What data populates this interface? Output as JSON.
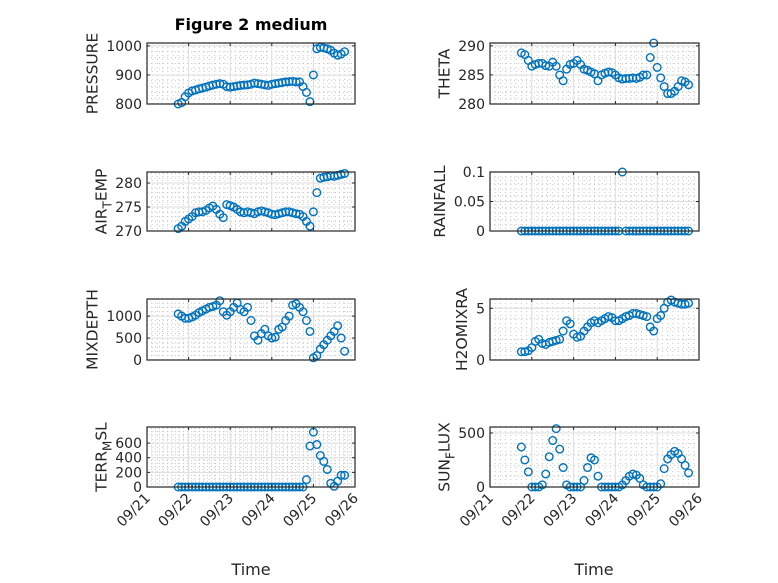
{
  "chart_data": {
    "type": "scatter",
    "figure_title": "Figure 2 medium",
    "xlabel": "Time",
    "x_unit": "day of September",
    "xlim": [
      21,
      26
    ],
    "xticks": [
      21,
      22,
      23,
      24,
      25,
      26
    ],
    "xtick_labels": [
      "09/21",
      "09/22",
      "09/23",
      "09/24",
      "09/25",
      "09/26"
    ],
    "x": [
      21.75,
      21.833,
      21.917,
      22.0,
      22.083,
      22.167,
      22.25,
      22.333,
      22.417,
      22.5,
      22.583,
      22.667,
      22.75,
      22.833,
      22.917,
      23.0,
      23.083,
      23.167,
      23.25,
      23.333,
      23.417,
      23.5,
      23.583,
      23.667,
      23.75,
      23.833,
      23.917,
      24.0,
      24.083,
      24.167,
      24.25,
      24.333,
      24.417,
      24.5,
      24.583,
      24.667,
      24.75,
      24.833,
      24.917,
      25.0,
      25.083,
      25.167,
      25.25,
      25.333,
      25.417,
      25.5,
      25.583,
      25.667,
      25.75
    ],
    "marker_color": "#0072BD",
    "grid": "major and minor",
    "subplots": [
      {
        "name": "pressure",
        "ylabel": "PRESSURE",
        "ylim": [
          800,
          1010
        ],
        "yticks": [
          800,
          900,
          1000
        ],
        "ytick_labels": [
          "800",
          "900",
          "1000"
        ],
        "show_xticklabels": false,
        "values": [
          800,
          805,
          825,
          838,
          845,
          848,
          852,
          855,
          858,
          862,
          865,
          868,
          870,
          868,
          860,
          858,
          860,
          862,
          864,
          865,
          866,
          868,
          872,
          870,
          868,
          866,
          864,
          868,
          870,
          872,
          874,
          876,
          877,
          878,
          876,
          876,
          860,
          840,
          808,
          900,
          990,
          995,
          993,
          990,
          985,
          975,
          968,
          972,
          980
        ]
      },
      {
        "name": "theta",
        "ylabel": "THETA",
        "ylim": [
          280,
          290.5
        ],
        "yticks": [
          280,
          285,
          290
        ],
        "ytick_labels": [
          "280",
          "285",
          "290"
        ],
        "show_xticklabels": false,
        "values": [
          288.8,
          288.5,
          287.5,
          286.5,
          286.8,
          287,
          287,
          286.6,
          286.5,
          287.2,
          286.5,
          285,
          284,
          286,
          286.8,
          287,
          287.5,
          286.8,
          286,
          285.8,
          285.5,
          285.2,
          284,
          285,
          285.3,
          285.5,
          285.4,
          285,
          284.5,
          284.3,
          284.4,
          284.4,
          284.5,
          284.4,
          284.6,
          285,
          285,
          288,
          290.5,
          286.3,
          284.5,
          283,
          281.8,
          281.8,
          282.2,
          283,
          284,
          283.8,
          283.3
        ]
      },
      {
        "name": "air-temp",
        "ylabel": "AIR_TEMP",
        "ylim": [
          270,
          282.3
        ],
        "yticks": [
          270,
          275,
          280
        ],
        "ytick_labels": [
          "270",
          "275",
          "280"
        ],
        "show_xticklabels": false,
        "values": [
          270.5,
          271,
          272,
          272.5,
          273,
          273.8,
          274,
          274,
          274.3,
          274.8,
          275.2,
          274.5,
          273.5,
          272.8,
          275.5,
          275.3,
          275,
          274.5,
          274,
          273.8,
          274,
          273.8,
          273.6,
          274,
          274.2,
          274,
          273.8,
          273.5,
          273.4,
          273.6,
          273.8,
          274,
          274,
          273.8,
          273.6,
          273.5,
          273,
          272,
          271,
          274,
          278,
          281,
          281.2,
          281.3,
          281.5,
          281.4,
          281.6,
          281.8,
          282
        ]
      },
      {
        "name": "rainfall",
        "ylabel": "RAINFALL",
        "ylim": [
          0,
          0.1
        ],
        "yticks": [
          0,
          0.05,
          0.1
        ],
        "ytick_labels": [
          "0",
          "0.05",
          "0.1"
        ],
        "show_xticklabels": false,
        "values": [
          0,
          0,
          0,
          0,
          0,
          0,
          0,
          0,
          0,
          0,
          0,
          0,
          0,
          0,
          0,
          0,
          0,
          0,
          0,
          0,
          0,
          0,
          0,
          0,
          0,
          0,
          0,
          0,
          0,
          0.1,
          0,
          0,
          0,
          0,
          0,
          0,
          0,
          0,
          0,
          0,
          0,
          0,
          0,
          0,
          0,
          0,
          0,
          0,
          0
        ]
      },
      {
        "name": "mixdepth",
        "ylabel": "MIXDEPTH",
        "ylim": [
          0,
          1390
        ],
        "yticks": [
          0,
          500,
          1000
        ],
        "ytick_labels": [
          "0",
          "500",
          "1000"
        ],
        "show_xticklabels": false,
        "values": [
          1050,
          1000,
          950,
          950,
          980,
          1020,
          1080,
          1120,
          1160,
          1200,
          1220,
          1250,
          1350,
          1100,
          1020,
          1100,
          1200,
          1300,
          1150,
          1100,
          1200,
          900,
          550,
          450,
          600,
          700,
          550,
          500,
          520,
          700,
          750,
          900,
          1000,
          1250,
          1280,
          1200,
          1100,
          900,
          650,
          50,
          100,
          250,
          350,
          450,
          550,
          650,
          780,
          500,
          200
        ]
      },
      {
        "name": "h2omixratio",
        "ylabel": "H2OMIXRA",
        "ylim": [
          0,
          5.9
        ],
        "yticks": [
          0,
          5
        ],
        "ytick_labels": [
          "0",
          "5"
        ],
        "show_xticklabels": false,
        "values": [
          0.8,
          0.8,
          0.9,
          1.2,
          1.8,
          2,
          1.6,
          1.5,
          1.7,
          1.8,
          1.9,
          2,
          2.8,
          3.8,
          3.5,
          2.5,
          2.2,
          2.3,
          2.8,
          3.2,
          3.6,
          3.8,
          3.6,
          3.8,
          4,
          4.2,
          4.1,
          3.8,
          3.8,
          4,
          4.2,
          4.3,
          4.5,
          4.5,
          4.4,
          4.3,
          4.2,
          3.2,
          2.8,
          4,
          4.3,
          5,
          5.6,
          5.8,
          5.6,
          5.5,
          5.4,
          5.4,
          5.5
        ]
      },
      {
        "name": "terr-msl",
        "ylabel": "TERR_MSL",
        "ylim": [
          0,
          820
        ],
        "yticks": [
          0,
          200,
          400,
          600
        ],
        "ytick_labels": [
          "0",
          "200",
          "400",
          "600"
        ],
        "show_xticklabels": true,
        "values": [
          0,
          0,
          0,
          0,
          0,
          0,
          0,
          0,
          0,
          0,
          0,
          0,
          0,
          0,
          0,
          0,
          0,
          0,
          0,
          0,
          0,
          0,
          0,
          0,
          0,
          0,
          0,
          0,
          0,
          0,
          0,
          0,
          0,
          0,
          0,
          0,
          0,
          100,
          560,
          750,
          580,
          430,
          350,
          240,
          50,
          10,
          80,
          160,
          160
        ]
      },
      {
        "name": "sun-flux",
        "ylabel": "SUN_FLUX",
        "ylim": [
          0,
          555
        ],
        "yticks": [
          0,
          500
        ],
        "ytick_labels": [
          "0",
          "500"
        ],
        "show_xticklabels": true,
        "values": [
          370,
          250,
          140,
          0,
          0,
          0,
          20,
          120,
          280,
          430,
          540,
          350,
          180,
          20,
          0,
          0,
          0,
          0,
          60,
          180,
          270,
          250,
          100,
          0,
          0,
          0,
          0,
          0,
          0,
          20,
          60,
          100,
          120,
          110,
          80,
          20,
          0,
          0,
          0,
          0,
          30,
          170,
          260,
          300,
          330,
          310,
          260,
          200,
          130
        ]
      }
    ]
  }
}
